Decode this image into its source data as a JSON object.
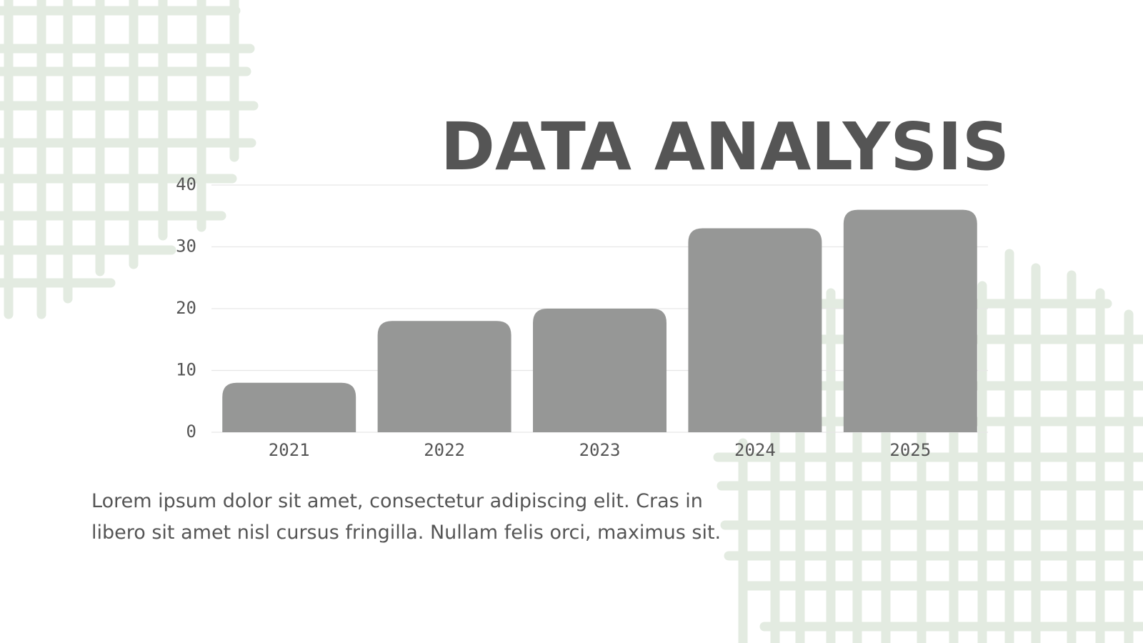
{
  "chart_data": {
    "type": "bar",
    "title": "DATA ANALYSIS",
    "categories": [
      "2021",
      "2022",
      "2023",
      "2024",
      "2025"
    ],
    "values": [
      8,
      18,
      20,
      33,
      36
    ],
    "color": "#969796",
    "ylim": [
      0,
      40
    ],
    "yticks": [
      0,
      10,
      20,
      30,
      40
    ],
    "grid": true
  },
  "body_lines": [
    "Lorem ipsum dolor sit amet, consectetur adipiscing elit. Cras in",
    "libero sit amet nisl cursus fringilla. Nullam felis orci, maximus sit."
  ]
}
